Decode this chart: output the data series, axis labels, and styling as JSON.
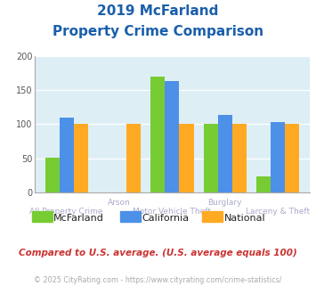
{
  "title_line1": "2019 McFarland",
  "title_line2": "Property Crime Comparison",
  "categories": [
    "All Property Crime",
    "Arson",
    "Motor Vehicle Theft",
    "Burglary",
    "Larceny & Theft"
  ],
  "series": {
    "McFarland": [
      51,
      0,
      170,
      100,
      24
    ],
    "California": [
      110,
      0,
      163,
      113,
      103
    ],
    "National": [
      100,
      100,
      100,
      100,
      100
    ]
  },
  "colors": {
    "McFarland": "#77cc33",
    "California": "#4d90e8",
    "National": "#ffaa22"
  },
  "ylim": [
    0,
    200
  ],
  "yticks": [
    0,
    50,
    100,
    150,
    200
  ],
  "plot_bg": "#ddeef5",
  "title_color": "#1a5faa",
  "footer_text": "Compared to U.S. average. (U.S. average equals 100)",
  "copyright_text": "© 2025 CityRating.com - https://www.cityrating.com/crime-statistics/",
  "footer_color": "#cc3333",
  "copyright_color": "#aaaaaa",
  "xtick_row1": [
    1,
    3
  ],
  "xtick_row1_labels": [
    "Arson",
    "Burglary"
  ],
  "xtick_row2": [
    0,
    2,
    4
  ],
  "xtick_row2_labels": [
    "All Property Crime",
    "Motor Vehicle Theft",
    "Larceny & Theft"
  ],
  "xtick_color": "#aaaacc"
}
